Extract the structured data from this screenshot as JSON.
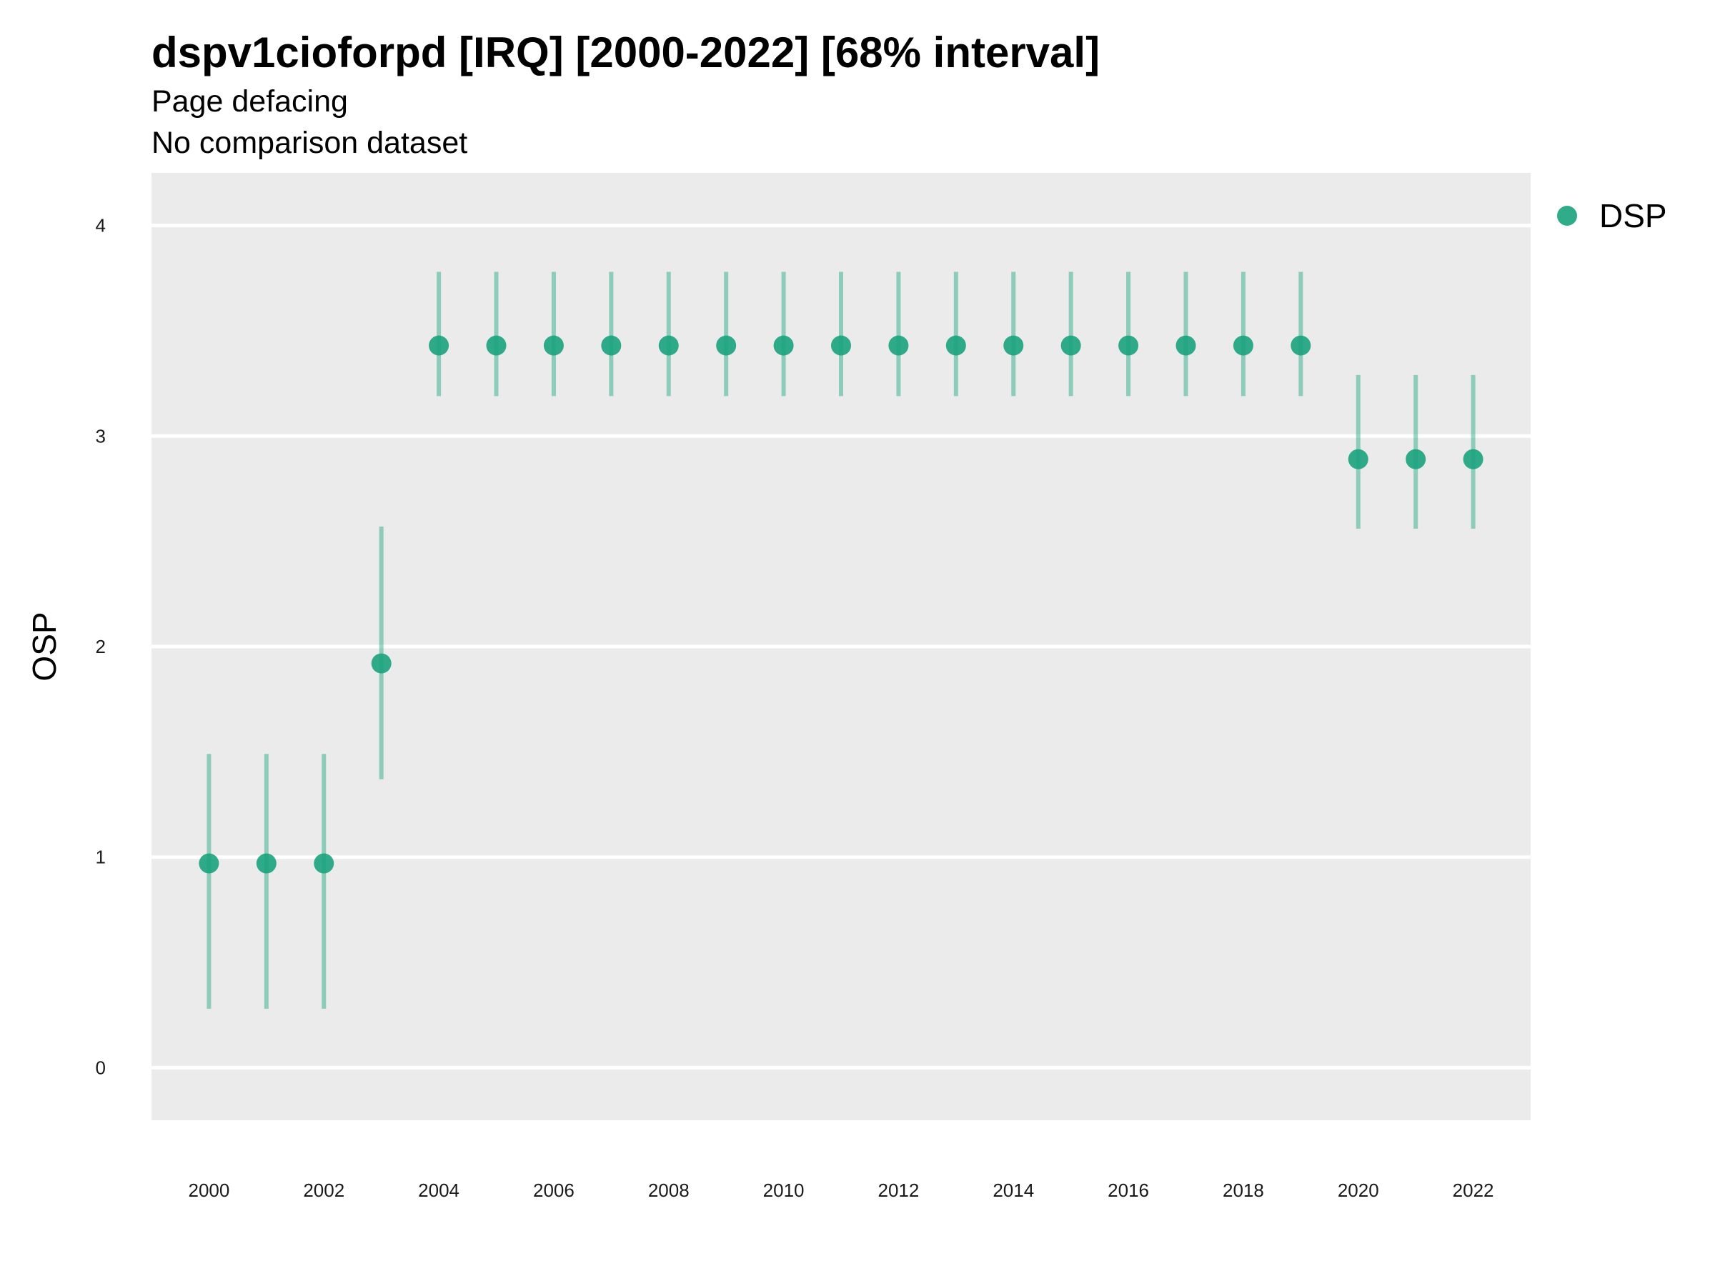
{
  "chart_data": {
    "type": "scatter",
    "title": "dspv1cioforpd [IRQ] [2000-2022] [68% interval]",
    "subtitle": "Page defacing",
    "caption_line": "No comparison dataset",
    "xlabel": "",
    "ylabel": "OSP",
    "xlim": [
      1999,
      2023
    ],
    "ylim": [
      -0.25,
      4.25
    ],
    "x_ticks": [
      "2000",
      "2002",
      "2004",
      "2006",
      "2008",
      "2010",
      "2012",
      "2014",
      "2016",
      "2018",
      "2020",
      "2022"
    ],
    "y_ticks": [
      "0",
      "1",
      "2",
      "3",
      "4"
    ],
    "grid": true,
    "legend_position": "right",
    "series": [
      {
        "name": "DSP",
        "color": "#1aa37e",
        "x": [
          2000,
          2001,
          2002,
          2003,
          2004,
          2005,
          2006,
          2007,
          2008,
          2009,
          2010,
          2011,
          2012,
          2013,
          2014,
          2015,
          2016,
          2017,
          2018,
          2019,
          2020,
          2021,
          2022
        ],
        "y": [
          0.97,
          0.97,
          0.97,
          1.92,
          3.43,
          3.43,
          3.43,
          3.43,
          3.43,
          3.43,
          3.43,
          3.43,
          3.43,
          3.43,
          3.43,
          3.43,
          3.43,
          3.43,
          3.43,
          3.43,
          2.89,
          2.89,
          2.89
        ],
        "lower": [
          0.28,
          0.28,
          0.28,
          1.37,
          3.19,
          3.19,
          3.19,
          3.19,
          3.19,
          3.19,
          3.19,
          3.19,
          3.19,
          3.19,
          3.19,
          3.19,
          3.19,
          3.19,
          3.19,
          3.19,
          2.56,
          2.56,
          2.56
        ],
        "upper": [
          1.49,
          1.49,
          1.49,
          2.57,
          3.78,
          3.78,
          3.78,
          3.78,
          3.78,
          3.78,
          3.78,
          3.78,
          3.78,
          3.78,
          3.78,
          3.78,
          3.78,
          3.78,
          3.78,
          3.78,
          3.29,
          3.29,
          3.29
        ]
      }
    ]
  }
}
